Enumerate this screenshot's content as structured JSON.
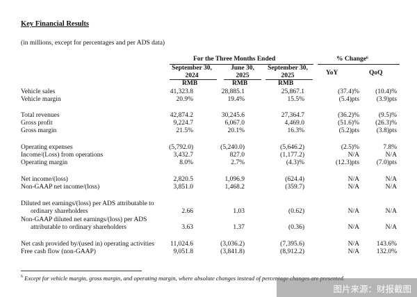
{
  "title": "Key Financial Results",
  "subtitle": "(in millions, except for percentages and per ADS data)",
  "header": {
    "group": "For the Three Months Ended",
    "change_group": "% Change⁶",
    "periods": [
      {
        "line1": "September 30,",
        "line2": "2024",
        "currency": "RMB"
      },
      {
        "line1": "June 30,",
        "line2": "2025",
        "currency": "RMB"
      },
      {
        "line1": "September 30,",
        "line2": "2025",
        "currency": "RMB"
      }
    ],
    "yoy": "YoY",
    "qoq": "QoQ"
  },
  "rows": [
    {
      "label": "Vehicle sales",
      "values": [
        "41,323.8",
        "28,885.1",
        "25,867.1",
        "(37.4)%",
        "(10.4)%"
      ]
    },
    {
      "label": "Vehicle margin",
      "values": [
        "20.9%",
        "19.4%",
        "15.5%",
        "(5.4)pts",
        "(3.9)pts"
      ]
    },
    {
      "label": "Total revenues",
      "values": [
        "42,874.2",
        "30,245.6",
        "27,364.7",
        "(36.2)%",
        "(9.5)%"
      ]
    },
    {
      "label": "Gross profit",
      "values": [
        "9,224.7",
        "6,067.0",
        "4,469.0",
        "(51.6)%",
        "(26.3)%"
      ]
    },
    {
      "label": "Gross margin",
      "values": [
        "21.5%",
        "20.1%",
        "16.3%",
        "(5.2)pts",
        "(3.8)pts"
      ]
    },
    {
      "label": "Operating expenses",
      "values": [
        "(5,792.0)",
        "(5,240.0)",
        "(5,646.2)",
        "(2.5)%",
        "7.8%"
      ]
    },
    {
      "label": "Income/(Loss) from operations",
      "values": [
        "3,432.7",
        "827.0",
        "(1,177.2)",
        "N/A",
        "N/A"
      ]
    },
    {
      "label": "Operating margin",
      "values": [
        "8.0%",
        "2.7%",
        "(4.3)%",
        "(12.3)pts",
        "(7.0)pts"
      ]
    },
    {
      "label": "Net income/(loss)",
      "values": [
        "2,820.5",
        "1,096.9",
        "(624.4)",
        "N/A",
        "N/A"
      ]
    },
    {
      "label": "Non-GAAP net income/(loss)",
      "values": [
        "3,851.0",
        "1,468.2",
        "(359.7)",
        "N/A",
        "N/A"
      ]
    },
    {
      "label": "Diluted net earnings/(loss) per ADS attributable to",
      "label2": "ordinary shareholders",
      "values": [
        "2.66",
        "1.03",
        "(0.62)",
        "N/A",
        "N/A"
      ]
    },
    {
      "label": "Non-GAAP diluted net earnings/(loss) per ADS",
      "label2": "attributable to ordinary shareholders",
      "values": [
        "3.63",
        "1.37",
        "(0.36)",
        "N/A",
        "N/A"
      ]
    },
    {
      "label": "Net cash provided by/(used in) operating activities",
      "values": [
        "11,024.6",
        "(3,036.2)",
        "(7,395.6)",
        "N/A",
        "143.6%"
      ]
    },
    {
      "label": "Free cash flow (non-GAAP)",
      "values": [
        "9,051.8",
        "(3,841.8)",
        "(8,912.2)",
        "N/A",
        "132.0%"
      ]
    }
  ],
  "footnote": {
    "mark": "6",
    "text": "Except for vehicle margin, gross margin, and operating margin, where absolute changes instead of percentage changes are presented."
  },
  "watermark": "图片来源：财报截图"
}
